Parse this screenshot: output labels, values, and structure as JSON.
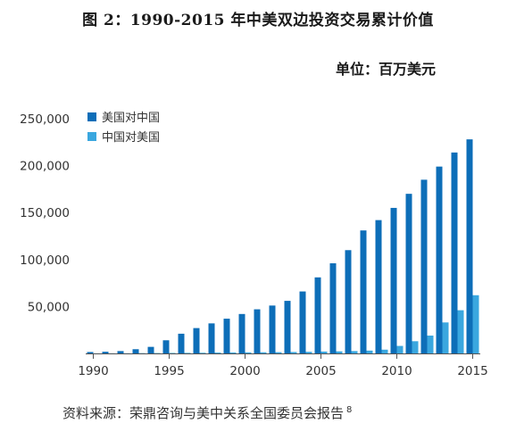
{
  "header": {
    "title": "图 2：1990-2015 年中美双边投资交易累计价值",
    "unit": "单位：百万美元"
  },
  "footer": {
    "source": "资料来源：荣鼎咨询与美中关系全国委员会报告",
    "footnote": "8"
  },
  "chart_data": {
    "type": "bar",
    "title": "图 2：1990-2015 年中美双边投资交易累计价值",
    "ylabel": "单位：百万美元",
    "xlabel": "",
    "categories": [
      1990,
      1991,
      1992,
      1993,
      1994,
      1995,
      1996,
      1997,
      1998,
      1999,
      2000,
      2001,
      2002,
      2003,
      2004,
      2005,
      2006,
      2007,
      2008,
      2009,
      2010,
      2011,
      2012,
      2013,
      2014,
      2015
    ],
    "x_tick_labels": [
      "1990",
      "1995",
      "2000",
      "2005",
      "2010",
      "2015"
    ],
    "y_tick_labels": [
      "50,000",
      "100,000",
      "150,000",
      "200,000",
      "250,000"
    ],
    "y_ticks": [
      50000,
      100000,
      150000,
      200000,
      250000
    ],
    "ylim": [
      0,
      260000
    ],
    "legend_position": "top-left",
    "series": [
      {
        "name": "美国对中国",
        "color": "#0d6eb8",
        "values": [
          1500,
          1800,
          2500,
          4500,
          7000,
          14000,
          21000,
          27000,
          32000,
          37000,
          42000,
          47000,
          51000,
          56000,
          66000,
          81000,
          96000,
          110000,
          131000,
          142000,
          155000,
          170000,
          185000,
          199000,
          214000,
          228000
        ]
      },
      {
        "name": "中国对美国",
        "color": "#3aa7df",
        "values": [
          100,
          150,
          200,
          300,
          400,
          500,
          600,
          700,
          900,
          1000,
          1100,
          1200,
          1300,
          1500,
          1700,
          2000,
          2200,
          2500,
          3000,
          4000,
          8000,
          13000,
          19000,
          33000,
          46000,
          62000
        ]
      }
    ]
  }
}
